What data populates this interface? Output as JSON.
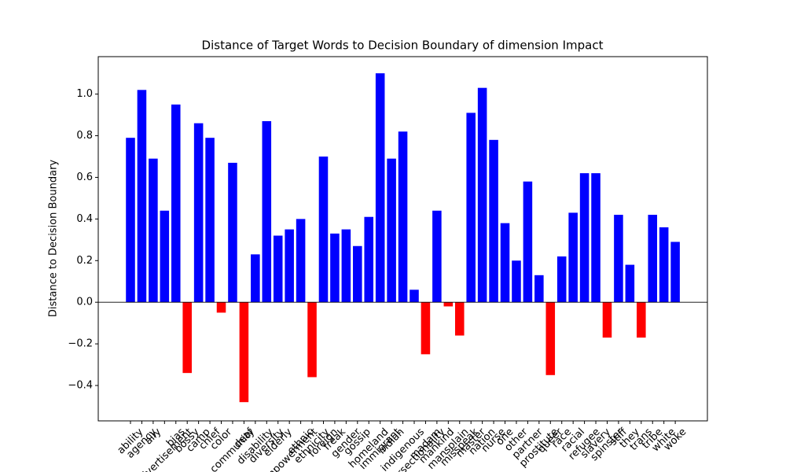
{
  "chart_data": {
    "type": "bar",
    "title": "Distance of Target Words to Decision Boundary of dimension Impact",
    "y_label": "Distance to Decision Boundary",
    "categories": [
      "ability",
      "agency",
      "ally",
      "advertisement",
      "bias",
      "bossy",
      "camp",
      "chief",
      "color",
      "community",
      "deaf",
      "disability",
      "diversity",
      "elderly",
      "empowerment",
      "ethnic",
      "ethnicity",
      "foreign",
      "freak",
      "gender",
      "gossip",
      "homeland",
      "immigrant",
      "indian",
      "indigenous",
      "intersectionality",
      "madam",
      "mankind",
      "mansplain",
      "misspeak",
      "master",
      "nation",
      "nurse",
      "one",
      "other",
      "partner",
      "prostitute",
      "queer",
      "race",
      "racial",
      "refugee",
      "slavery",
      "spinster",
      "stiff",
      "they",
      "trans",
      "tribe",
      "white",
      "woke"
    ],
    "values": [
      0.79,
      1.02,
      0.69,
      0.44,
      0.95,
      -0.34,
      0.86,
      0.79,
      -0.05,
      0.67,
      -0.48,
      0.23,
      0.87,
      0.32,
      0.35,
      0.4,
      -0.36,
      0.7,
      0.33,
      0.35,
      0.27,
      0.41,
      1.1,
      0.69,
      0.82,
      0.06,
      -0.25,
      0.44,
      -0.02,
      -0.16,
      0.91,
      1.03,
      0.78,
      0.38,
      0.2,
      0.58,
      0.13,
      -0.35,
      0.22,
      0.43,
      0.62,
      0.62,
      -0.17,
      0.42,
      0.18,
      -0.17,
      0.42,
      0.36,
      0.29
    ],
    "colors": [
      "blue",
      "blue",
      "blue",
      "blue",
      "blue",
      "red",
      "blue",
      "blue",
      "red",
      "blue",
      "red",
      "blue",
      "blue",
      "blue",
      "blue",
      "blue",
      "red",
      "blue",
      "blue",
      "blue",
      "blue",
      "blue",
      "blue",
      "blue",
      "blue",
      "blue",
      "red",
      "blue",
      "red",
      "red",
      "blue",
      "blue",
      "blue",
      "blue",
      "blue",
      "blue",
      "blue",
      "red",
      "blue",
      "blue",
      "blue",
      "blue",
      "red",
      "blue",
      "blue",
      "red",
      "blue",
      "blue",
      "blue"
    ],
    "ylim": [
      -0.57,
      1.18
    ],
    "yticks": [
      {
        "value": -0.4,
        "label": "−0.4"
      },
      {
        "value": -0.2,
        "label": "−0.2"
      },
      {
        "value": 0,
        "label": "0.0"
      },
      {
        "value": 0.2,
        "label": "0.2"
      },
      {
        "value": 0.4,
        "label": "0.4"
      },
      {
        "value": 0.6,
        "label": "0.6"
      },
      {
        "value": 0.8,
        "label": "0.8"
      },
      {
        "value": 1,
        "label": "1.0"
      }
    ],
    "zero_line": true
  }
}
